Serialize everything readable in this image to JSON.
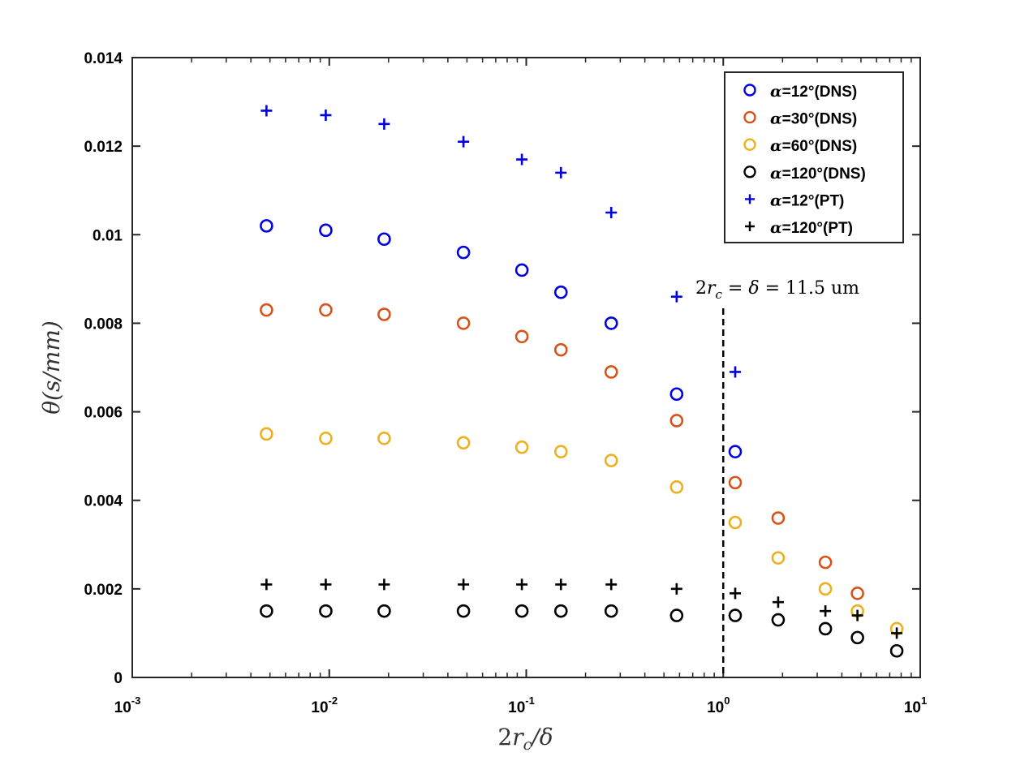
{
  "chart_data": {
    "type": "scatter",
    "xscale": "log",
    "xlim": [
      0.001,
      10
    ],
    "ylim": [
      0,
      0.014
    ],
    "xlabel": "2r_c/δ",
    "ylabel": "θ(s/mm)",
    "xticks": [
      {
        "base": "10",
        "exp": "-3"
      },
      {
        "base": "10",
        "exp": "-2"
      },
      {
        "base": "10",
        "exp": "-1"
      },
      {
        "base": "10",
        "exp": "0"
      },
      {
        "base": "10",
        "exp": "1"
      }
    ],
    "yticks": [
      "0",
      "0.002",
      "0.004",
      "0.006",
      "0.008",
      "0.01",
      "0.012",
      "0.014"
    ],
    "vline": {
      "x": 1.0,
      "label": "2r_c = δ = 11.5 um"
    },
    "legend_position": "top-right",
    "series": [
      {
        "name": "α=12°(DNS)",
        "marker": "circle",
        "color": "#0000e0",
        "x": [
          0.0048,
          0.0096,
          0.019,
          0.048,
          0.095,
          0.15,
          0.27,
          0.58,
          1.15
        ],
        "y": [
          0.0102,
          0.0101,
          0.0099,
          0.0096,
          0.0092,
          0.0087,
          0.008,
          0.0064,
          0.0051
        ]
      },
      {
        "name": "α=30°(DNS)",
        "marker": "circle",
        "color": "#d95319",
        "x": [
          0.0048,
          0.0096,
          0.019,
          0.048,
          0.095,
          0.15,
          0.27,
          0.58,
          1.15,
          1.9,
          3.3,
          4.8
        ],
        "y": [
          0.0083,
          0.0083,
          0.0082,
          0.008,
          0.0077,
          0.0074,
          0.0069,
          0.0058,
          0.0044,
          0.0036,
          0.0026,
          0.0019
        ]
      },
      {
        "name": "α=60°(DNS)",
        "marker": "circle",
        "color": "#edb120",
        "x": [
          0.0048,
          0.0096,
          0.019,
          0.048,
          0.095,
          0.15,
          0.27,
          0.58,
          1.15,
          1.9,
          3.3,
          4.8,
          7.6
        ],
        "y": [
          0.0055,
          0.0054,
          0.0054,
          0.0053,
          0.0052,
          0.0051,
          0.0049,
          0.0043,
          0.0035,
          0.0027,
          0.002,
          0.0015,
          0.0011
        ]
      },
      {
        "name": "α=120°(DNS)",
        "marker": "circle",
        "color": "#000000",
        "x": [
          0.0048,
          0.0096,
          0.019,
          0.048,
          0.095,
          0.15,
          0.27,
          0.58,
          1.15,
          1.9,
          3.3,
          4.8,
          7.6
        ],
        "y": [
          0.0015,
          0.0015,
          0.0015,
          0.0015,
          0.0015,
          0.0015,
          0.0015,
          0.0014,
          0.0014,
          0.0013,
          0.0011,
          0.0009,
          0.0006
        ]
      },
      {
        "name": "α=12°(PT)",
        "marker": "plus",
        "color": "#0000e0",
        "x": [
          0.0048,
          0.0096,
          0.019,
          0.048,
          0.095,
          0.15,
          0.27,
          0.58,
          1.15
        ],
        "y": [
          0.0128,
          0.0127,
          0.0125,
          0.0121,
          0.0117,
          0.0114,
          0.0105,
          0.0086,
          0.0069
        ]
      },
      {
        "name": "α=120°(PT)",
        "marker": "plus",
        "color": "#000000",
        "x": [
          0.0048,
          0.0096,
          0.019,
          0.048,
          0.095,
          0.15,
          0.27,
          0.58,
          1.15,
          1.9,
          3.3,
          4.8,
          7.6
        ],
        "y": [
          0.0021,
          0.0021,
          0.0021,
          0.0021,
          0.0021,
          0.0021,
          0.0021,
          0.002,
          0.0019,
          0.0017,
          0.0015,
          0.0014,
          0.001
        ]
      }
    ]
  }
}
